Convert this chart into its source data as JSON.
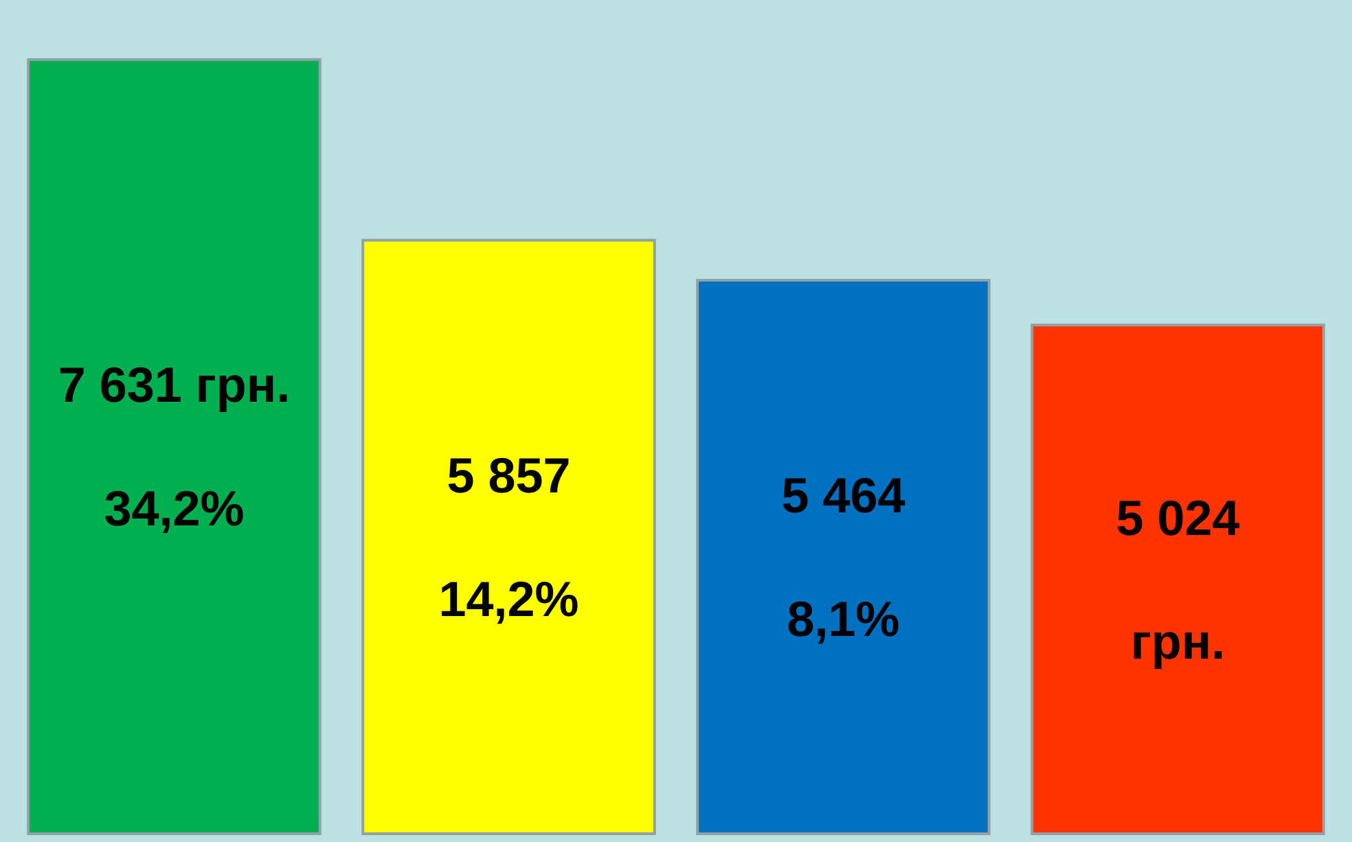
{
  "chart_data": {
    "type": "bar",
    "categories": [
      null,
      null,
      null,
      null
    ],
    "values": [
      7631,
      5857,
      5464,
      5024
    ],
    "colors": [
      "#00b050",
      "#ffff00",
      "#0070c0",
      "#ff3300"
    ],
    "value_labels": [
      "7 631 грн.",
      "5 857",
      "5 464",
      "5 024\nгрн."
    ],
    "annotations": [
      "34,2%",
      "14,2%",
      "8,1%"
    ],
    "tick_labels": false
  }
}
